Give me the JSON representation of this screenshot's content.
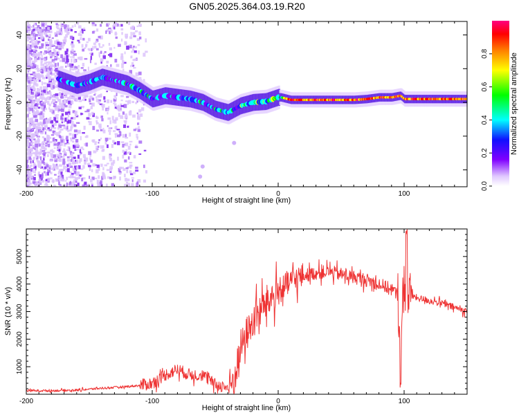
{
  "title": "GN05.2025.364.03.19.R20",
  "chart_data": [
    {
      "type": "heatmap",
      "description_source": "top panel spectrogram",
      "xlabel": "Height of straight line (km)",
      "ylabel": "Frequency (Hz)",
      "xlim": [
        -200,
        150
      ],
      "ylim": [
        -50,
        48
      ],
      "xticks": [
        -200,
        -100,
        0,
        100
      ],
      "xtick_labels": [
        "-200",
        "-100",
        "0",
        "100"
      ],
      "yticks": [
        -40,
        -20,
        0,
        20,
        40
      ],
      "ytick_labels": [
        "-40",
        "-20",
        "0",
        "20",
        "40"
      ],
      "ridge": {
        "x": [
          -175,
          -160,
          -150,
          -140,
          -130,
          -120,
          -110,
          -100,
          -90,
          -80,
          -70,
          -60,
          -50,
          -40,
          -35,
          -30,
          -20,
          -10,
          0,
          2,
          10,
          20,
          40,
          60,
          70,
          80,
          90,
          97,
          100,
          105,
          120,
          150
        ],
        "y": [
          14,
          10,
          12,
          15,
          13,
          11,
          7,
          2,
          4,
          3,
          2,
          0,
          -4,
          -6,
          -4,
          -2,
          0,
          0.5,
          3,
          3,
          1.5,
          1.5,
          1.5,
          1.5,
          2,
          3,
          3,
          4,
          2,
          2,
          2,
          2
        ]
      },
      "colorbar": {
        "label": "Normalized spectral amplitude",
        "range": [
          0,
          1
        ],
        "ticks": [
          0.0,
          0.2,
          0.4,
          0.6,
          0.8
        ],
        "tick_labels": [
          "0.0",
          "0.2",
          "0.4",
          "0.6",
          "0.8"
        ],
        "colors": [
          "#ffffff",
          "#d9b8ff",
          "#8000ff",
          "#2020ff",
          "#00ffff",
          "#00ff00",
          "#ffff00",
          "#ff8000",
          "#ff0000",
          "#ff0080"
        ]
      }
    },
    {
      "type": "line",
      "description_source": "bottom panel SNR trace",
      "xlabel": "Height of straight line (km)",
      "ylabel": "SNR (10 * v/v)",
      "xlim": [
        -200,
        150
      ],
      "ylim": [
        0,
        6000
      ],
      "xticks": [
        -200,
        -100,
        0,
        100
      ],
      "xtick_labels": [
        "-200",
        "-100",
        "0",
        "100"
      ],
      "yticks": [
        1000,
        2000,
        3000,
        4000,
        5000
      ],
      "ytick_labels": [
        "1000",
        "2000",
        "3000",
        "4000",
        "5000"
      ],
      "line_color": "#ee3333",
      "envelope": {
        "x": [
          -200,
          -180,
          -160,
          -140,
          -120,
          -110,
          -100,
          -90,
          -80,
          -70,
          -60,
          -50,
          -40,
          -35,
          -30,
          -25,
          -20,
          -15,
          -10,
          -5,
          0,
          10,
          20,
          30,
          40,
          50,
          60,
          70,
          80,
          90,
          95,
          97,
          100,
          103,
          105,
          110,
          120,
          130,
          140,
          150
        ],
        "y": [
          130,
          130,
          150,
          220,
          280,
          320,
          400,
          700,
          900,
          700,
          700,
          350,
          250,
          500,
          1700,
          2200,
          2600,
          3000,
          3300,
          3500,
          3700,
          4100,
          4300,
          4400,
          4450,
          4350,
          4250,
          4150,
          4000,
          3800,
          3600,
          2000,
          4200,
          3500,
          3600,
          3500,
          3400,
          3300,
          3150,
          3000
        ]
      }
    }
  ]
}
